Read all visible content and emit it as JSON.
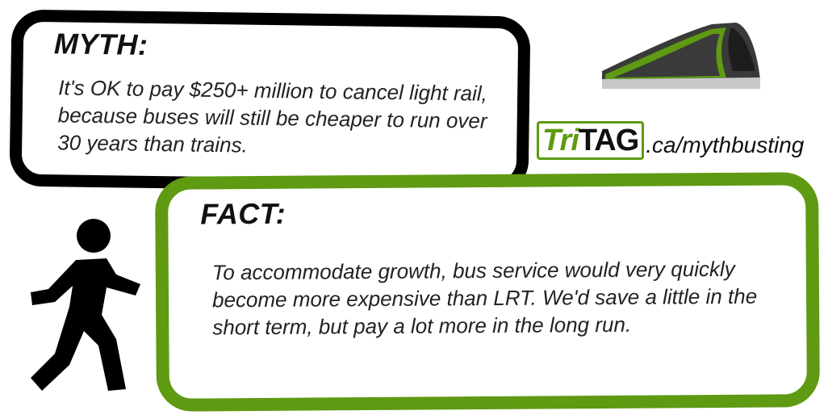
{
  "myth": {
    "heading": "MYTH:",
    "text": "It's OK to pay $250+ million to cancel light rail, because buses will still be cheaper to run over 30 years than trains."
  },
  "fact": {
    "heading": "FACT:",
    "text": "To accommodate growth, bus service would very quickly become more expensive than LRT. We'd save a little in the short term, but pay a lot more in the long run."
  },
  "logo": {
    "tri": "Tri",
    "tag": "TAG",
    "url": ".ca/mythbusting"
  },
  "icons": {
    "train": "light-rail-train-icon",
    "pedestrian": "walking-person-icon"
  },
  "colors": {
    "accent_green": "#5e9a12",
    "black": "#000000",
    "train_gray": "#3a3a3a"
  }
}
